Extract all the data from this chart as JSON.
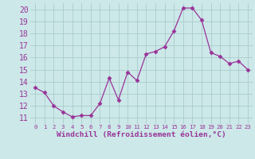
{
  "x": [
    0,
    1,
    2,
    3,
    4,
    5,
    6,
    7,
    8,
    9,
    10,
    11,
    12,
    13,
    14,
    15,
    16,
    17,
    18,
    19,
    20,
    21,
    22,
    23
  ],
  "y": [
    13.5,
    13.1,
    12.0,
    11.5,
    11.1,
    11.2,
    11.2,
    12.2,
    14.3,
    12.5,
    14.8,
    14.1,
    16.3,
    16.5,
    16.9,
    18.2,
    20.1,
    20.1,
    19.1,
    16.4,
    16.1,
    15.5,
    15.7,
    15.0
  ],
  "line_color": "#993399",
  "marker": "D",
  "marker_size": 2.5,
  "bg_color": "#cce8e8",
  "grid_color": "#aacccc",
  "xlabel": "Windchill (Refroidissement éolien,°C)",
  "xlabel_color": "#993399",
  "tick_color": "#993399",
  "ylabel_ticks": [
    11,
    12,
    13,
    14,
    15,
    16,
    17,
    18,
    19,
    20
  ],
  "xlim": [
    -0.5,
    23.5
  ],
  "ylim": [
    10.5,
    20.5
  ],
  "spine_color": "#7777aa",
  "xtick_labels": [
    "0",
    "1",
    "2",
    "3",
    "4",
    "5",
    "6",
    "7",
    "8",
    "9",
    "10",
    "11",
    "12",
    "13",
    "14",
    "15",
    "16",
    "17",
    "18",
    "19",
    "20",
    "21",
    "22",
    "23"
  ],
  "ytick_fontsize": 7.0,
  "xtick_fontsize": 5.2,
  "xlabel_fontsize": 6.8
}
